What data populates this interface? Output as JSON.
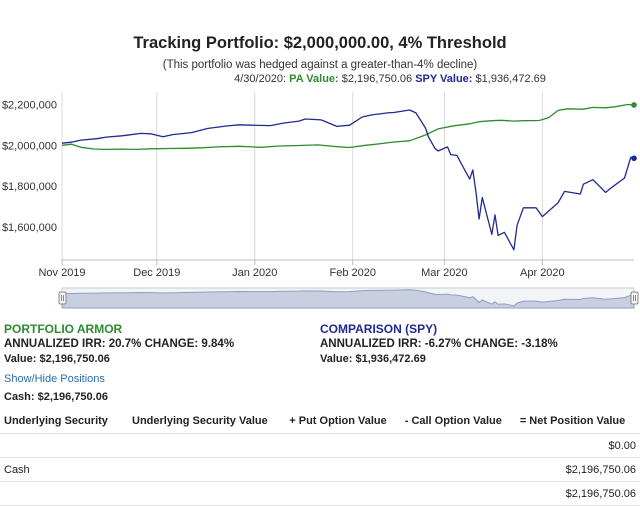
{
  "header": {
    "title": "Tracking Portfolio: $2,000,000.00, 4% Threshold",
    "subtitle": "(This portfolio was hedged against a greater-than-4% decline)",
    "readout_date": "4/30/2020:",
    "pa_label": "PA Value:",
    "pa_value": "$2,196,750.06",
    "spy_label": "SPY Value:",
    "spy_value": "$1,936,472.69"
  },
  "chart_data": {
    "type": "line",
    "title": "Tracking Portfolio: $2,000,000.00, 4% Threshold",
    "subtitle": "(This portfolio was hedged against a greater-than-4% decline)",
    "xlabel": "",
    "ylabel": "",
    "x_range": [
      "2019-11-01",
      "2020-04-30"
    ],
    "ylim": [
      1440000,
      2260000
    ],
    "y_ticks": [
      1600000,
      1800000,
      2000000,
      2200000
    ],
    "y_tick_labels": [
      "$1,600,000",
      "$1,800,000",
      "$2,000,000",
      "$2,200,000"
    ],
    "x_tick_labels": [
      "Nov 2019",
      "Dec 2019",
      "Jan 2020",
      "Feb 2020",
      "Mar 2020",
      "Apr 2020"
    ],
    "x_ticks": [
      "2019-11-01",
      "2019-12-01",
      "2020-01-01",
      "2020-02-01",
      "2020-03-01",
      "2020-04-01"
    ],
    "grid": "vertical",
    "navigator": true,
    "series": [
      {
        "name": "PA Value",
        "color": "#2e8b2e",
        "points": [
          [
            "2019-11-01",
            2000000
          ],
          [
            "2019-11-04",
            2005000
          ],
          [
            "2019-11-07",
            1990000
          ],
          [
            "2019-11-11",
            1982000
          ],
          [
            "2019-11-15",
            1980000
          ],
          [
            "2019-11-20",
            1981000
          ],
          [
            "2019-11-25",
            1980000
          ],
          [
            "2019-11-29",
            1983000
          ],
          [
            "2019-12-05",
            1984000
          ],
          [
            "2019-12-10",
            1985000
          ],
          [
            "2019-12-16",
            1988000
          ],
          [
            "2019-12-20",
            1992000
          ],
          [
            "2019-12-27",
            1995000
          ],
          [
            "2020-01-03",
            1990000
          ],
          [
            "2020-01-08",
            1996000
          ],
          [
            "2020-01-15",
            1999000
          ],
          [
            "2020-01-21",
            2002000
          ],
          [
            "2020-01-27",
            1993000
          ],
          [
            "2020-01-31",
            1989000
          ],
          [
            "2020-02-05",
            2000000
          ],
          [
            "2020-02-10",
            2008000
          ],
          [
            "2020-02-14",
            2016000
          ],
          [
            "2020-02-19",
            2022000
          ],
          [
            "2020-02-24",
            2050000
          ],
          [
            "2020-02-28",
            2080000
          ],
          [
            "2020-03-04",
            2095000
          ],
          [
            "2020-03-09",
            2105000
          ],
          [
            "2020-03-12",
            2115000
          ],
          [
            "2020-03-16",
            2120000
          ],
          [
            "2020-03-19",
            2122000
          ],
          [
            "2020-03-23",
            2118000
          ],
          [
            "2020-03-26",
            2120000
          ],
          [
            "2020-03-31",
            2121000
          ],
          [
            "2020-04-03",
            2135000
          ],
          [
            "2020-04-06",
            2170000
          ],
          [
            "2020-04-09",
            2178000
          ],
          [
            "2020-04-14",
            2176000
          ],
          [
            "2020-04-17",
            2185000
          ],
          [
            "2020-04-21",
            2183000
          ],
          [
            "2020-04-24",
            2188000
          ],
          [
            "2020-04-28",
            2199000
          ],
          [
            "2020-04-30",
            2196750
          ]
        ]
      },
      {
        "name": "SPY Value",
        "color": "#1f2a8f",
        "points": [
          [
            "2019-11-01",
            2010000
          ],
          [
            "2019-11-04",
            2015000
          ],
          [
            "2019-11-07",
            2025000
          ],
          [
            "2019-11-12",
            2032000
          ],
          [
            "2019-11-15",
            2040000
          ],
          [
            "2019-11-20",
            2046000
          ],
          [
            "2019-11-26",
            2058000
          ],
          [
            "2019-11-29",
            2056000
          ],
          [
            "2019-12-03",
            2042000
          ],
          [
            "2019-12-06",
            2052000
          ],
          [
            "2019-12-12",
            2062000
          ],
          [
            "2019-12-17",
            2082000
          ],
          [
            "2019-12-23",
            2094000
          ],
          [
            "2019-12-27",
            2100000
          ],
          [
            "2019-12-31",
            2098000
          ],
          [
            "2020-01-06",
            2096000
          ],
          [
            "2020-01-10",
            2108000
          ],
          [
            "2020-01-15",
            2118000
          ],
          [
            "2020-01-17",
            2128000
          ],
          [
            "2020-01-22",
            2124000
          ],
          [
            "2020-01-27",
            2092000
          ],
          [
            "2020-01-31",
            2098000
          ],
          [
            "2020-02-04",
            2138000
          ],
          [
            "2020-02-07",
            2148000
          ],
          [
            "2020-02-12",
            2158000
          ],
          [
            "2020-02-14",
            2160000
          ],
          [
            "2020-02-19",
            2172000
          ],
          [
            "2020-02-21",
            2158000
          ],
          [
            "2020-02-24",
            2085000
          ],
          [
            "2020-02-25",
            2040000
          ],
          [
            "2020-02-27",
            1985000
          ],
          [
            "2020-02-28",
            1972000
          ],
          [
            "2020-03-02",
            1992000
          ],
          [
            "2020-03-03",
            1955000
          ],
          [
            "2020-03-05",
            1950000
          ],
          [
            "2020-03-06",
            1920000
          ],
          [
            "2020-03-09",
            1835000
          ],
          [
            "2020-03-10",
            1880000
          ],
          [
            "2020-03-11",
            1770000
          ],
          [
            "2020-03-12",
            1640000
          ],
          [
            "2020-03-13",
            1745000
          ],
          [
            "2020-03-16",
            1565000
          ],
          [
            "2020-03-17",
            1660000
          ],
          [
            "2020-03-18",
            1560000
          ],
          [
            "2020-03-20",
            1575000
          ],
          [
            "2020-03-23",
            1490000
          ],
          [
            "2020-03-24",
            1610000
          ],
          [
            "2020-03-26",
            1695000
          ],
          [
            "2020-03-30",
            1695000
          ],
          [
            "2020-04-01",
            1652000
          ],
          [
            "2020-04-06",
            1720000
          ],
          [
            "2020-04-08",
            1775000
          ],
          [
            "2020-04-13",
            1762000
          ],
          [
            "2020-04-14",
            1810000
          ],
          [
            "2020-04-17",
            1832000
          ],
          [
            "2020-04-21",
            1770000
          ],
          [
            "2020-04-23",
            1795000
          ],
          [
            "2020-04-27",
            1840000
          ],
          [
            "2020-04-29",
            1942000
          ],
          [
            "2020-04-30",
            1936473
          ]
        ]
      }
    ]
  },
  "pa_summary": {
    "heading": "PORTFOLIO ARMOR",
    "line": "ANNUALIZED IRR: 20.7% CHANGE: 9.84%",
    "value": "Value: $2,196,750.06"
  },
  "spy_summary": {
    "heading": "COMPARISON (SPY)",
    "line": "ANNUALIZED IRR: -6.27% CHANGE: -3.18%",
    "value": "Value: $1,936,472.69"
  },
  "positions": {
    "toggle_label": "Show/Hide Positions",
    "cash_line": "Cash: $2,196,750.06",
    "columns": [
      "Underlying Security",
      "Underlying Security Value",
      "+ Put Option Value",
      "- Call Option Value",
      "= Net Position Value"
    ],
    "rows": [
      [
        "",
        "",
        "",
        "",
        "$0.00"
      ],
      [
        "Cash",
        "",
        "",
        "",
        "$2,196,750.06"
      ],
      [
        "",
        "",
        "",
        "",
        "$2,196,750.06"
      ]
    ]
  }
}
